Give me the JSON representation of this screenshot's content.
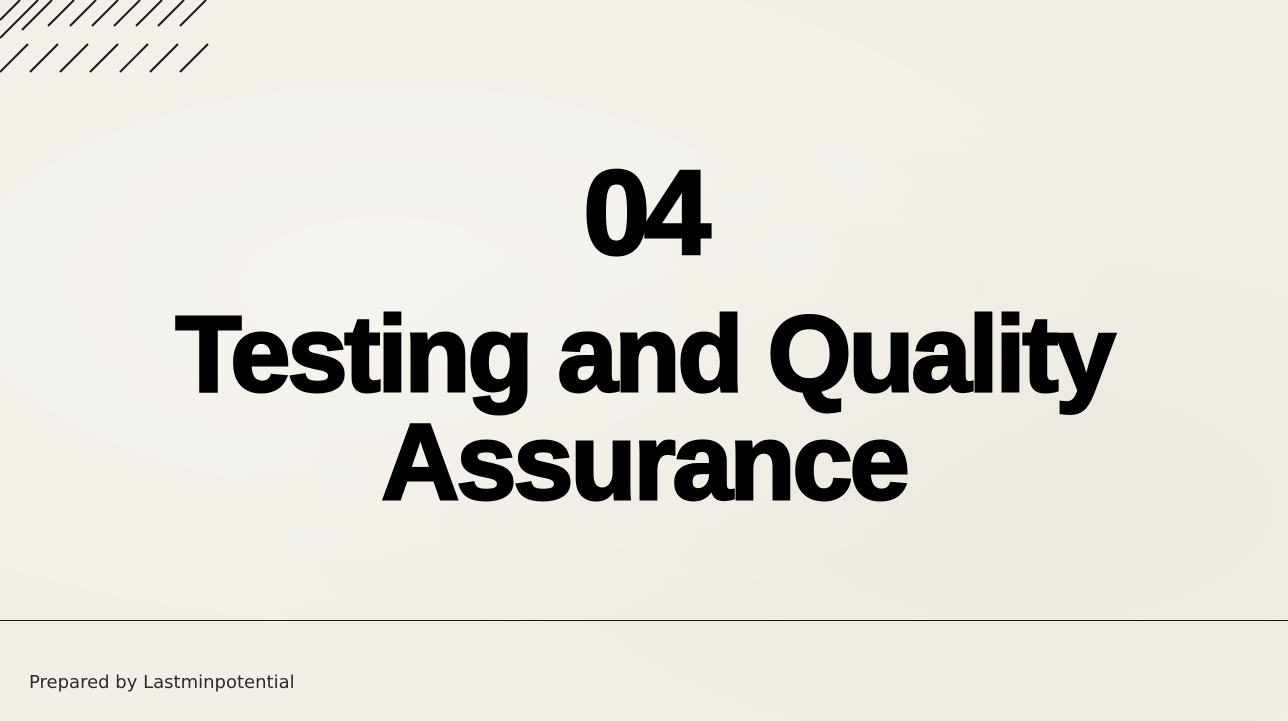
{
  "slide": {
    "section_number": "04",
    "title": "Testing and Quality Assurance",
    "footer": "Prepared by Lastminpotential"
  },
  "colors": {
    "background": "#f2efe8",
    "text": "#000000",
    "footer_text": "#2b2b2b"
  },
  "icons": {
    "decoration": "diagonal-hatch-lines"
  }
}
